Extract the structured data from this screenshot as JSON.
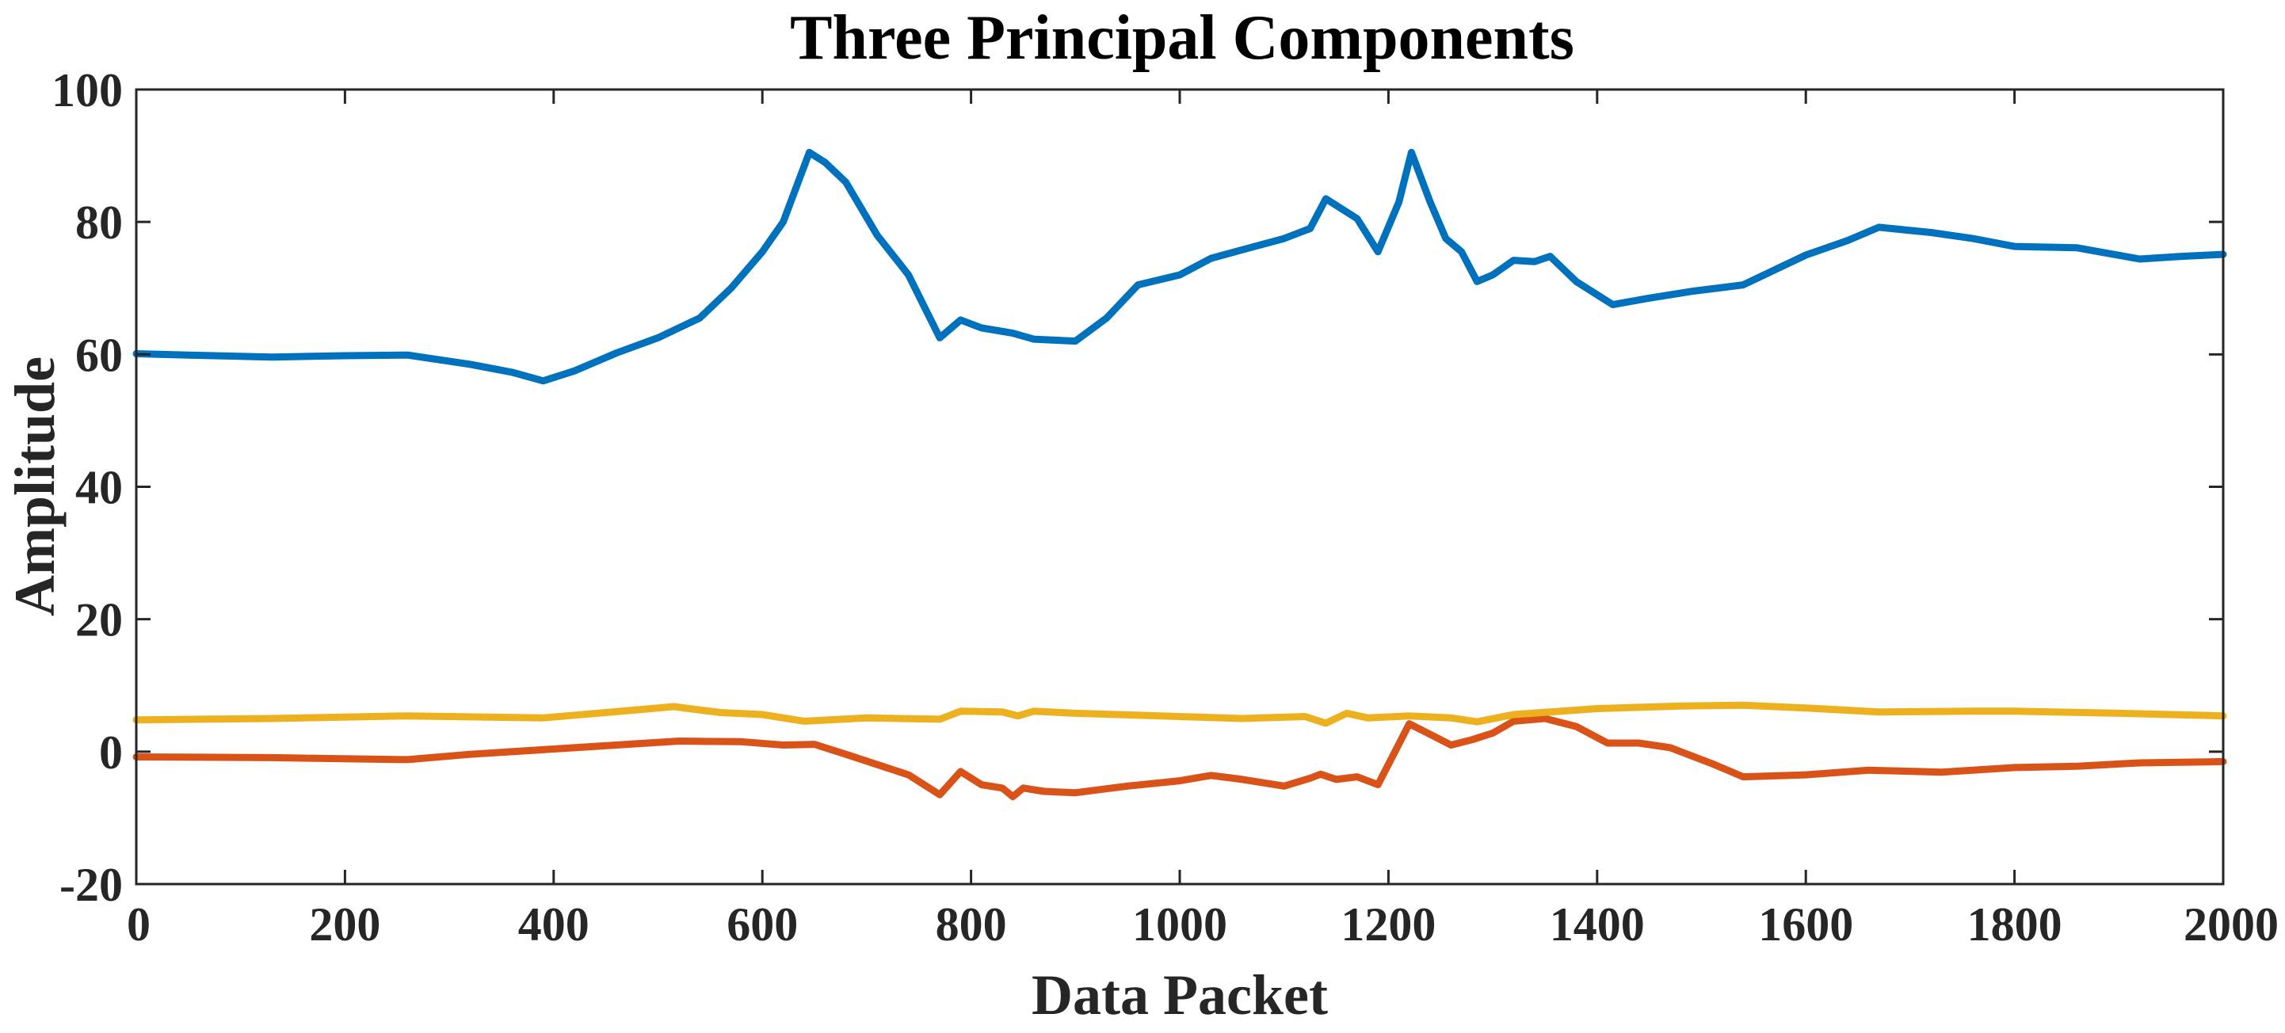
{
  "chart_data": {
    "type": "line",
    "title": "Three Principal Components",
    "xlabel": "Data Packet",
    "ylabel": "Amplitude",
    "xlim": [
      0,
      2000
    ],
    "ylim": [
      -20,
      100
    ],
    "xticks": [
      0,
      200,
      400,
      600,
      800,
      1000,
      1200,
      1400,
      1600,
      1800,
      2000
    ],
    "yticks": [
      -20,
      0,
      20,
      40,
      60,
      80,
      100
    ],
    "xtick_labels": [
      "0",
      "200",
      "400",
      "600",
      "800",
      "1000",
      "1200",
      "1400",
      "1600",
      "1800",
      "2000"
    ],
    "ytick_labels": [
      "-20",
      "0",
      "20",
      "40",
      "60",
      "80",
      "100"
    ],
    "grid": false,
    "legend": "none",
    "series": [
      {
        "color": "#0072BD",
        "points": [
          [
            0,
            60.1
          ],
          [
            50,
            59.9
          ],
          [
            130,
            59.6
          ],
          [
            200,
            59.8
          ],
          [
            260,
            59.9
          ],
          [
            320,
            58.5
          ],
          [
            360,
            57.3
          ],
          [
            390,
            56
          ],
          [
            420,
            57.5
          ],
          [
            460,
            60.2
          ],
          [
            500,
            62.5
          ],
          [
            520,
            64
          ],
          [
            540,
            65.5
          ],
          [
            570,
            70
          ],
          [
            600,
            75.5
          ],
          [
            620,
            80
          ],
          [
            645,
            90.5
          ],
          [
            660,
            89
          ],
          [
            680,
            86
          ],
          [
            710,
            78
          ],
          [
            740,
            72
          ],
          [
            770,
            62.5
          ],
          [
            790,
            65.2
          ],
          [
            810,
            64
          ],
          [
            840,
            63.2
          ],
          [
            860,
            62.3
          ],
          [
            900,
            62
          ],
          [
            930,
            65.5
          ],
          [
            960,
            70.5
          ],
          [
            1000,
            72
          ],
          [
            1030,
            74.5
          ],
          [
            1060,
            75.8
          ],
          [
            1100,
            77.5
          ],
          [
            1125,
            79
          ],
          [
            1140,
            83.5
          ],
          [
            1170,
            80.5
          ],
          [
            1190,
            75.5
          ],
          [
            1210,
            83
          ],
          [
            1222,
            90.5
          ],
          [
            1240,
            83
          ],
          [
            1255,
            77.5
          ],
          [
            1270,
            75.5
          ],
          [
            1285,
            71
          ],
          [
            1300,
            72
          ],
          [
            1320,
            74.2
          ],
          [
            1340,
            74
          ],
          [
            1355,
            74.8
          ],
          [
            1380,
            71
          ],
          [
            1400,
            69
          ],
          [
            1415,
            67.5
          ],
          [
            1450,
            68.5
          ],
          [
            1490,
            69.5
          ],
          [
            1540,
            70.5
          ],
          [
            1600,
            75
          ],
          [
            1640,
            77.2
          ],
          [
            1670,
            79.2
          ],
          [
            1720,
            78.4
          ],
          [
            1760,
            77.5
          ],
          [
            1800,
            76.3
          ],
          [
            1860,
            76.1
          ],
          [
            1920,
            74.4
          ],
          [
            1960,
            74.8
          ],
          [
            2000,
            75.1
          ]
        ]
      },
      {
        "color": "#D95319",
        "points": [
          [
            0,
            -0.8
          ],
          [
            130,
            -0.9
          ],
          [
            260,
            -1.2
          ],
          [
            320,
            -0.4
          ],
          [
            400,
            0.4
          ],
          [
            460,
            1
          ],
          [
            520,
            1.6
          ],
          [
            580,
            1.5
          ],
          [
            620,
            1
          ],
          [
            650,
            1.1
          ],
          [
            680,
            -0.4
          ],
          [
            740,
            -3.5
          ],
          [
            770,
            -6.5
          ],
          [
            790,
            -3
          ],
          [
            810,
            -5
          ],
          [
            830,
            -5.5
          ],
          [
            840,
            -6.8
          ],
          [
            850,
            -5.5
          ],
          [
            870,
            -6
          ],
          [
            900,
            -6.2
          ],
          [
            950,
            -5.2
          ],
          [
            1000,
            -4.4
          ],
          [
            1030,
            -3.6
          ],
          [
            1060,
            -4.2
          ],
          [
            1100,
            -5.2
          ],
          [
            1125,
            -4
          ],
          [
            1135,
            -3.4
          ],
          [
            1150,
            -4.2
          ],
          [
            1170,
            -3.8
          ],
          [
            1190,
            -5
          ],
          [
            1220,
            4.2
          ],
          [
            1245,
            2.2
          ],
          [
            1260,
            1
          ],
          [
            1280,
            1.8
          ],
          [
            1300,
            2.8
          ],
          [
            1320,
            4.6
          ],
          [
            1350,
            5
          ],
          [
            1380,
            3.8
          ],
          [
            1410,
            1.3
          ],
          [
            1440,
            1.3
          ],
          [
            1470,
            0.6
          ],
          [
            1510,
            -1.8
          ],
          [
            1540,
            -3.8
          ],
          [
            1600,
            -3.5
          ],
          [
            1660,
            -2.8
          ],
          [
            1730,
            -3.1
          ],
          [
            1800,
            -2.4
          ],
          [
            1860,
            -2.2
          ],
          [
            1920,
            -1.7
          ],
          [
            2000,
            -1.5
          ]
        ]
      },
      {
        "color": "#EDB120",
        "points": [
          [
            0,
            4.8
          ],
          [
            130,
            5
          ],
          [
            260,
            5.4
          ],
          [
            390,
            5.1
          ],
          [
            450,
            5.9
          ],
          [
            515,
            6.8
          ],
          [
            560,
            5.9
          ],
          [
            600,
            5.6
          ],
          [
            640,
            4.6
          ],
          [
            700,
            5.1
          ],
          [
            770,
            4.9
          ],
          [
            790,
            6.1
          ],
          [
            830,
            6
          ],
          [
            845,
            5.4
          ],
          [
            860,
            6.1
          ],
          [
            900,
            5.8
          ],
          [
            1000,
            5.3
          ],
          [
            1060,
            5
          ],
          [
            1120,
            5.3
          ],
          [
            1140,
            4.3
          ],
          [
            1160,
            5.8
          ],
          [
            1180,
            5.1
          ],
          [
            1220,
            5.4
          ],
          [
            1260,
            5.1
          ],
          [
            1285,
            4.5
          ],
          [
            1320,
            5.6
          ],
          [
            1400,
            6.5
          ],
          [
            1480,
            6.9
          ],
          [
            1540,
            7
          ],
          [
            1600,
            6.6
          ],
          [
            1670,
            6
          ],
          [
            1760,
            6.1
          ],
          [
            1800,
            6.1
          ],
          [
            1900,
            5.8
          ],
          [
            2000,
            5.4
          ]
        ]
      }
    ]
  }
}
